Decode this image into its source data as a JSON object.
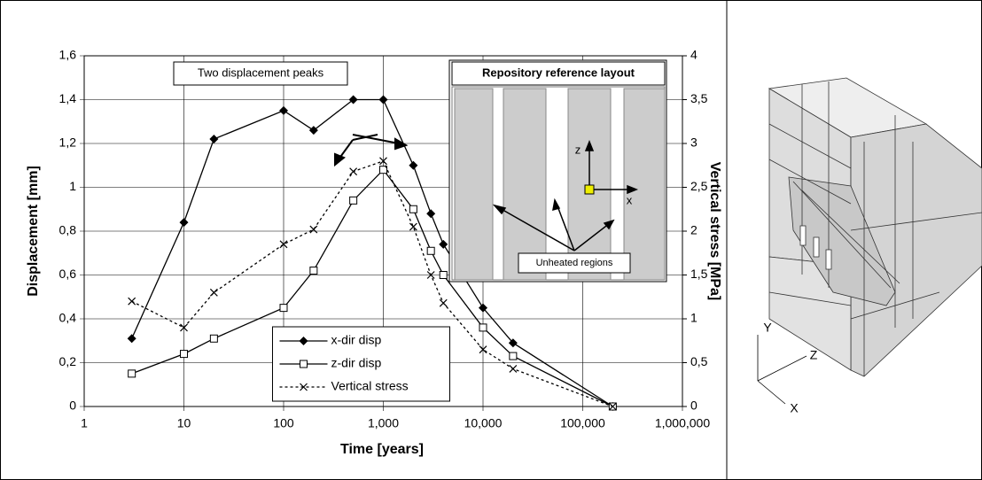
{
  "chart_data": {
    "type": "line",
    "x_label": "Time [years]",
    "y_label": "Displacement [mm]",
    "y2_label": "Vertical stress [MPa]",
    "log_x": true,
    "grid": true,
    "legend_position": "lower center",
    "xlim": [
      1,
      1000000
    ],
    "xticks": [
      1,
      10,
      100,
      {
        "value": 1000,
        "label": "1,000"
      },
      {
        "value": 10000,
        "label": "10,000"
      },
      {
        "value": 100000,
        "label": "100,000"
      },
      {
        "value": 1000000,
        "label": "1,000,000"
      }
    ],
    "ylim": [
      0,
      1.6
    ],
    "yticks": [
      0,
      {
        "value": 0.2,
        "label": "0,2"
      },
      {
        "value": 0.4,
        "label": "0,4"
      },
      {
        "value": 0.6,
        "label": "0,6"
      },
      {
        "value": 0.8,
        "label": "0,8"
      },
      1,
      {
        "value": 1.2,
        "label": "1,2"
      },
      {
        "value": 1.4,
        "label": "1,4"
      },
      {
        "value": 1.6,
        "label": "1,6"
      }
    ],
    "y2lim": [
      0,
      4
    ],
    "y2ticks": [
      0,
      {
        "value": 0.5,
        "label": "0,5"
      },
      1,
      {
        "value": 1.5,
        "label": "1,5"
      },
      2,
      {
        "value": 2.5,
        "label": "2,5"
      },
      3,
      {
        "value": 3.5,
        "label": "3,5"
      },
      4
    ],
    "x": [
      3,
      10,
      20,
      100,
      200,
      500,
      1000,
      2000,
      3000,
      4000,
      10000,
      20000,
      200000
    ],
    "series": [
      {
        "name": "x-dir disp",
        "color": "#000000",
        "marker": "diamond",
        "dash": false,
        "values": [
          0.31,
          0.84,
          1.22,
          1.35,
          1.26,
          1.4,
          1.4,
          1.1,
          0.88,
          0.74,
          0.45,
          0.29,
          0
        ]
      },
      {
        "name": "z-dir disp",
        "color": "#000000",
        "marker": "square",
        "dash": false,
        "values": [
          0.15,
          0.24,
          0.31,
          0.45,
          0.62,
          0.94,
          1.08,
          0.9,
          0.71,
          0.6,
          0.36,
          0.23,
          0
        ]
      },
      {
        "name": "Vertical stress",
        "color": "#000000",
        "marker": "x",
        "dash": true,
        "axis": "y2",
        "values": [
          1.2,
          0.9,
          1.3,
          1.85,
          2.02,
          2.68,
          2.8,
          2.05,
          1.5,
          1.18,
          0.65,
          0.43,
          0
        ]
      }
    ],
    "annotations": [
      "Two displacement peaks"
    ],
    "inset": {
      "title": "Repository reference layout",
      "labels": [
        "z",
        "x",
        "Unheated regions"
      ]
    }
  },
  "diagram": {
    "axes": [
      "Y",
      "Z",
      "X"
    ]
  }
}
